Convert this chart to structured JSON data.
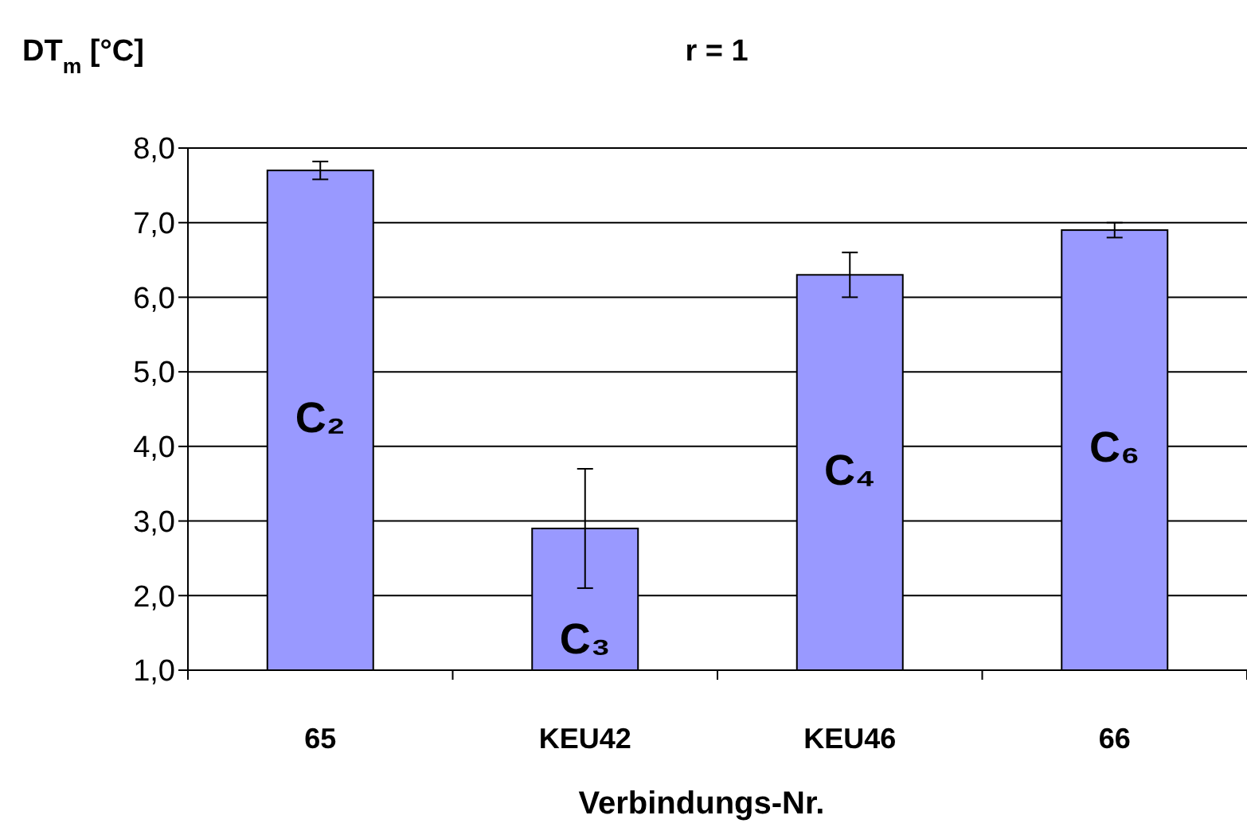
{
  "chart_data": {
    "type": "bar",
    "title": "r = 1",
    "ylabel": "DT$_{m}$ [°C]",
    "xlabel": "Verbindungs-Nr.",
    "categories": [
      "65",
      "KEU42",
      "KEU46",
      "66"
    ],
    "values": [
      7.7,
      2.9,
      6.3,
      6.9
    ],
    "errors": [
      0.12,
      0.8,
      0.3,
      0.1
    ],
    "color": "#9999ff",
    "ylim": [
      1,
      8
    ],
    "yticks": [
      {
        "value": 1,
        "label": "1,0"
      },
      {
        "value": 2,
        "label": "2,0"
      },
      {
        "value": 3,
        "label": "3,0"
      },
      {
        "value": 4,
        "label": "4,0"
      },
      {
        "value": 5,
        "label": "5,0"
      },
      {
        "value": 6,
        "label": "6,0"
      },
      {
        "value": 7,
        "label": "7,0"
      },
      {
        "value": 8,
        "label": "8,0"
      }
    ],
    "grid": "y",
    "annotations": [
      "C₂",
      "C₃",
      "C₄",
      "C₆"
    ]
  }
}
